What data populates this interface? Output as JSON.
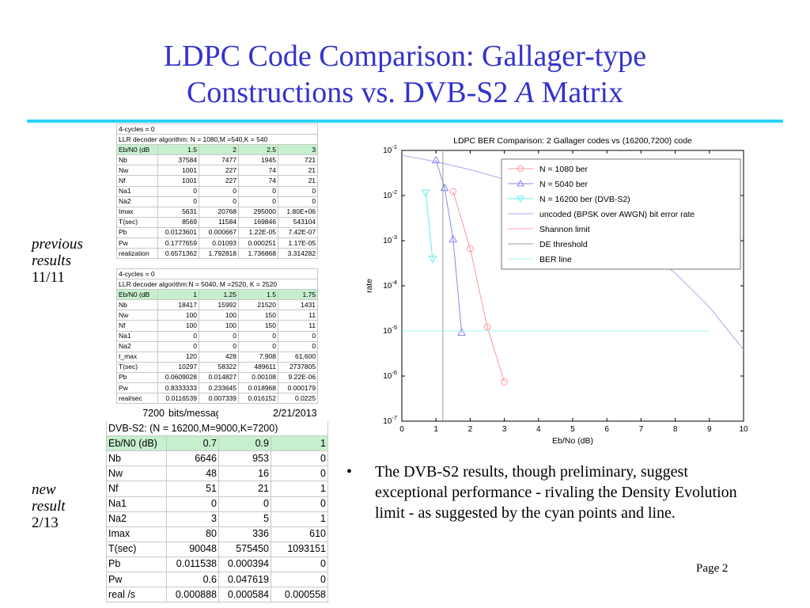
{
  "title": {
    "line1": "LDPC Code Comparison: Gallager-type",
    "line2_prefix": "Constructions vs. DVB-S2 ",
    "line2_italic": "A",
    "line2_suffix": " Matrix"
  },
  "side_labels": {
    "previous": [
      "previous",
      "results"
    ],
    "previous_date": "11/11",
    "new": [
      "new",
      "result"
    ],
    "new_date": "2/13"
  },
  "table1": {
    "rows": [
      [
        "4-cycles = 0",
        "",
        "",
        "",
        ""
      ],
      [
        "LLR decoder algorithm: N = 1080,M =540,K = 540",
        "",
        "",
        "",
        ""
      ],
      [
        "Eb/N0 (dB",
        "1.5",
        "2",
        "2.5",
        "3"
      ],
      [
        "Nb",
        "37584",
        "7477",
        "1945",
        "721"
      ],
      [
        "Nw",
        "1001",
        "227",
        "74",
        "21"
      ],
      [
        "Nf",
        "1001",
        "227",
        "74",
        "21"
      ],
      [
        "Na1",
        "0",
        "0",
        "0",
        "0"
      ],
      [
        "Na2",
        "0",
        "0",
        "0",
        "0"
      ],
      [
        "Imax",
        "5631",
        "20768",
        "295000",
        "1.80E+06"
      ],
      [
        "T(sec)",
        "8569",
        "11584",
        "169846",
        "543104"
      ],
      [
        "Pb",
        "0.0123601",
        "0.000667",
        "1.22E-05",
        "7.42E-07"
      ],
      [
        "Pw",
        "0.1777659",
        "0.01093",
        "0.000251",
        "1.17E-05"
      ],
      [
        "realization",
        "0.6571362",
        "1.792818",
        "1.736868",
        "3.314282"
      ]
    ],
    "highlight_row": 2,
    "span_rows": [
      0,
      1
    ]
  },
  "table2": {
    "rows": [
      [
        "4-cycles = 0",
        "",
        "",
        "",
        ""
      ],
      [
        "LLR decoder algorithm:N = 5040, M =2520, K = 2520",
        "",
        "",
        "",
        ""
      ],
      [
        "Eb/N0 (dB",
        "1",
        "1.25",
        "1.5",
        "1.75"
      ],
      [
        "Nb",
        "18417",
        "15992",
        "21520",
        "1431"
      ],
      [
        "Nw",
        "100",
        "100",
        "150",
        "11"
      ],
      [
        "Nf",
        "100",
        "100",
        "150",
        "11"
      ],
      [
        "Na1",
        "0",
        "0",
        "0",
        "0"
      ],
      [
        "Na2",
        "0",
        "0",
        "0",
        "0"
      ],
      [
        "I_max",
        "120",
        "428",
        "7,908",
        "61,600"
      ],
      [
        "T(sec)",
        "10297",
        "58322",
        "489611",
        "2737805"
      ],
      [
        "Pb",
        "0.0609028",
        "0.014827",
        "0.00108",
        "9.22E-06"
      ],
      [
        "Pw",
        "0.8333333",
        "0.233645",
        "0.018968",
        "0.000179"
      ],
      [
        "real/sec",
        "0.0116539",
        "0.007339",
        "0.016152",
        "0.0225"
      ]
    ],
    "highlight_row": 2,
    "span_rows": [
      0,
      1
    ]
  },
  "table3": {
    "header": [
      "7200",
      "bits/message",
      "",
      "2/21/2013"
    ],
    "rows": [
      [
        "DVB-S2: (N = 16200,M=9000,K=7200)",
        "",
        "",
        ""
      ],
      [
        "Eb/N0 (dB)",
        "0.7",
        "0.9",
        "1"
      ],
      [
        "Nb",
        "6646",
        "953",
        "0"
      ],
      [
        "Nw",
        "48",
        "16",
        "0"
      ],
      [
        "Nf",
        "51",
        "21",
        "1"
      ],
      [
        "Na1",
        "0",
        "0",
        "0"
      ],
      [
        "Na2",
        "3",
        "5",
        "1"
      ],
      [
        "Imax",
        "80",
        "336",
        "610"
      ],
      [
        "T(sec)",
        "90048",
        "575450",
        "1093151"
      ],
      [
        "Pb",
        "0.011538",
        "0.000394",
        "0"
      ],
      [
        "Pw",
        "0.6",
        "0.047619",
        "0"
      ],
      [
        "real /s",
        "0.000888",
        "0.000584",
        "0.000558"
      ]
    ],
    "highlight_row": 1,
    "span_rows": [
      0
    ]
  },
  "chart_data": {
    "type": "line",
    "title": "LDPC BER Comparison: 2 Gallager codes vs (16200,7200) code",
    "xlabel": "Eb/No (dB)",
    "ylabel": "rate",
    "xlim": [
      0,
      10
    ],
    "ylim_exp": [
      -7,
      -1
    ],
    "yscale": "log",
    "x_ticks": [
      "0",
      "1",
      "2",
      "3",
      "4",
      "5",
      "6",
      "7",
      "8",
      "9",
      "10"
    ],
    "y_ticks": [
      {
        "base": "10",
        "exp": "-1"
      },
      {
        "base": "10",
        "exp": "-2"
      },
      {
        "base": "10",
        "exp": "-3"
      },
      {
        "base": "10",
        "exp": "-4"
      },
      {
        "base": "10",
        "exp": "-5"
      },
      {
        "base": "10",
        "exp": "-6"
      },
      {
        "base": "10",
        "exp": "-7"
      }
    ],
    "legend_position": "top-right",
    "series": [
      {
        "name": "N = 1080 ber",
        "color": "#ff9999",
        "marker": "circle",
        "x": [
          1.5,
          2,
          2.5,
          3
        ],
        "y": [
          0.0123601,
          0.000667,
          1.22e-05,
          7.42e-07
        ]
      },
      {
        "name": "N = 5040 ber",
        "color": "#8888ee",
        "marker": "triangle-up",
        "x": [
          1,
          1.25,
          1.5,
          1.75
        ],
        "y": [
          0.0609028,
          0.014827,
          0.00108,
          9.22e-06
        ]
      },
      {
        "name": "N = 16200 ber (DVB-S2)",
        "color": "#66eeee",
        "marker": "triangle-down",
        "x": [
          0.7,
          0.9
        ],
        "y": [
          0.011538,
          0.000394
        ]
      },
      {
        "name": "uncoded (BPSK over AWGN) bit error rate",
        "color": "#aaaaee",
        "marker": "none",
        "x": [
          0,
          1,
          2,
          3,
          4,
          5,
          6,
          7,
          8,
          9,
          10
        ],
        "y": [
          0.0786,
          0.0563,
          0.0375,
          0.0229,
          0.0125,
          0.00595,
          0.00239,
          0.000773,
          0.000191,
          3.36e-05,
          3.87e-06
        ]
      },
      {
        "name": "Shannon limit",
        "color": "#ff99cc",
        "marker": "none",
        "x": [],
        "y": []
      },
      {
        "name": "DE threshold",
        "color": "#999999",
        "marker": "none",
        "x": [
          1.2,
          1.2
        ],
        "y": [
          0.1,
          1e-07
        ]
      },
      {
        "name": "BER line",
        "color": "#aaf0f0",
        "marker": "none",
        "x": [
          0,
          9
        ],
        "y": [
          1e-05,
          1e-05
        ]
      }
    ]
  },
  "bullet": {
    "symbol": "•",
    "text": "The DVB-S2 results, though preliminary, suggest exceptional performance - rivaling  the Density Evolution limit - as suggested by the cyan points and line."
  },
  "page_number": "Page 2"
}
